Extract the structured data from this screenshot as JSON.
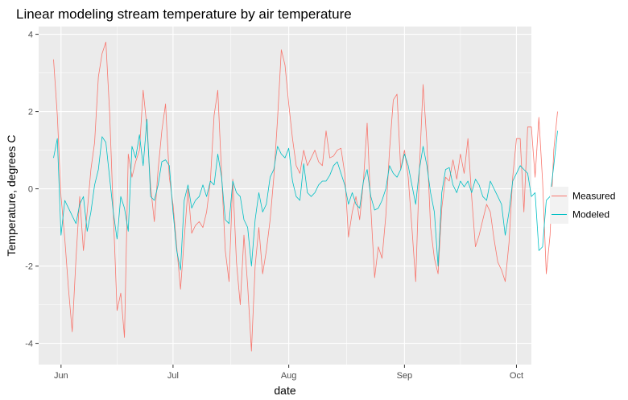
{
  "chart_data": {
    "type": "line",
    "title": "Linear modeling stream temperature by air temperature",
    "xlabel": "date",
    "ylabel": "Temperature, degrees C",
    "x_ticks": [
      {
        "label": "Jun",
        "date": "2016-06-01"
      },
      {
        "label": "Jul",
        "date": "2016-07-01"
      },
      {
        "label": "Aug",
        "date": "2016-08-01"
      },
      {
        "label": "Sep",
        "date": "2016-09-01"
      },
      {
        "label": "Oct",
        "date": "2016-10-01"
      }
    ],
    "xlim": [
      "2016-05-26",
      "2016-10-05"
    ],
    "y_ticks": [
      -4,
      -2,
      0,
      2,
      4
    ],
    "ylim": [
      -4.55,
      4.2
    ],
    "grid": true,
    "legend_position": "right",
    "series": [
      {
        "name": "Measured",
        "color": "#F8766D",
        "points": [
          [
            "2016-05-30",
            3.35
          ],
          [
            "2016-05-31",
            1.9
          ],
          [
            "2016-06-01",
            -0.2
          ],
          [
            "2016-06-02",
            -1.3
          ],
          [
            "2016-06-03",
            -2.6
          ],
          [
            "2016-06-04",
            -3.7
          ],
          [
            "2016-06-05",
            -1.8
          ],
          [
            "2016-06-06",
            -0.2
          ],
          [
            "2016-06-07",
            -1.6
          ],
          [
            "2016-06-08",
            -0.6
          ],
          [
            "2016-06-09",
            0.5
          ],
          [
            "2016-06-10",
            1.2
          ],
          [
            "2016-06-11",
            2.9
          ],
          [
            "2016-06-12",
            3.5
          ],
          [
            "2016-06-13",
            3.8
          ],
          [
            "2016-06-14",
            2.0
          ],
          [
            "2016-06-15",
            -0.6
          ],
          [
            "2016-06-16",
            -3.15
          ],
          [
            "2016-06-17",
            -2.7
          ],
          [
            "2016-06-18",
            -3.85
          ],
          [
            "2016-06-19",
            0.9
          ],
          [
            "2016-06-20",
            0.3
          ],
          [
            "2016-06-21",
            0.7
          ],
          [
            "2016-06-22",
            1.0
          ],
          [
            "2016-06-23",
            2.55
          ],
          [
            "2016-06-24",
            1.6
          ],
          [
            "2016-06-25",
            0.05
          ],
          [
            "2016-06-26",
            -0.85
          ],
          [
            "2016-06-27",
            0.5
          ],
          [
            "2016-06-28",
            1.5
          ],
          [
            "2016-06-29",
            2.2
          ],
          [
            "2016-06-30",
            0.3
          ],
          [
            "2016-07-01",
            -0.4
          ],
          [
            "2016-07-02",
            -1.5
          ],
          [
            "2016-07-03",
            -2.6
          ],
          [
            "2016-07-04",
            -1.3
          ],
          [
            "2016-07-05",
            0.0
          ],
          [
            "2016-07-06",
            -1.15
          ],
          [
            "2016-07-07",
            -0.95
          ],
          [
            "2016-07-08",
            -0.85
          ],
          [
            "2016-07-09",
            -1.0
          ],
          [
            "2016-07-10",
            -0.6
          ],
          [
            "2016-07-11",
            0.2
          ],
          [
            "2016-07-12",
            1.9
          ],
          [
            "2016-07-13",
            2.55
          ],
          [
            "2016-07-14",
            0.4
          ],
          [
            "2016-07-15",
            -1.6
          ],
          [
            "2016-07-16",
            -2.4
          ],
          [
            "2016-07-17",
            0.25
          ],
          [
            "2016-07-18",
            -1.9
          ],
          [
            "2016-07-19",
            -3.0
          ],
          [
            "2016-07-20",
            -1.2
          ],
          [
            "2016-07-21",
            -2.5
          ],
          [
            "2016-07-22",
            -4.2
          ],
          [
            "2016-07-23",
            -2.0
          ],
          [
            "2016-07-24",
            -1.0
          ],
          [
            "2016-07-25",
            -2.2
          ],
          [
            "2016-07-26",
            -1.6
          ],
          [
            "2016-07-27",
            -0.8
          ],
          [
            "2016-07-28",
            0.3
          ],
          [
            "2016-07-29",
            1.8
          ],
          [
            "2016-07-30",
            3.6
          ],
          [
            "2016-07-31",
            3.2
          ],
          [
            "2016-08-01",
            2.2
          ],
          [
            "2016-08-02",
            1.3
          ],
          [
            "2016-08-03",
            0.6
          ],
          [
            "2016-08-04",
            0.4
          ],
          [
            "2016-08-05",
            1.0
          ],
          [
            "2016-08-06",
            0.6
          ],
          [
            "2016-08-07",
            0.8
          ],
          [
            "2016-08-08",
            1.0
          ],
          [
            "2016-08-09",
            0.7
          ],
          [
            "2016-08-10",
            0.6
          ],
          [
            "2016-08-11",
            1.5
          ],
          [
            "2016-08-12",
            0.8
          ],
          [
            "2016-08-13",
            0.85
          ],
          [
            "2016-08-14",
            1.0
          ],
          [
            "2016-08-15",
            1.05
          ],
          [
            "2016-08-16",
            0.4
          ],
          [
            "2016-08-17",
            -1.25
          ],
          [
            "2016-08-18",
            -0.6
          ],
          [
            "2016-08-19",
            -0.2
          ],
          [
            "2016-08-20",
            -0.8
          ],
          [
            "2016-08-21",
            0.2
          ],
          [
            "2016-08-22",
            1.7
          ],
          [
            "2016-08-23",
            -0.5
          ],
          [
            "2016-08-24",
            -2.3
          ],
          [
            "2016-08-25",
            -1.5
          ],
          [
            "2016-08-26",
            -1.8
          ],
          [
            "2016-08-27",
            -0.7
          ],
          [
            "2016-08-28",
            1.0
          ],
          [
            "2016-08-29",
            2.3
          ],
          [
            "2016-08-30",
            2.45
          ],
          [
            "2016-08-31",
            0.5
          ],
          [
            "2016-09-01",
            1.0
          ],
          [
            "2016-09-02",
            0.3
          ],
          [
            "2016-09-03",
            -1.0
          ],
          [
            "2016-09-04",
            -2.4
          ],
          [
            "2016-09-05",
            0.5
          ],
          [
            "2016-09-06",
            2.7
          ],
          [
            "2016-09-07",
            1.2
          ],
          [
            "2016-09-08",
            -1.0
          ],
          [
            "2016-09-09",
            -1.8
          ],
          [
            "2016-09-10",
            -2.2
          ],
          [
            "2016-09-11",
            -0.5
          ],
          [
            "2016-09-12",
            0.3
          ],
          [
            "2016-09-13",
            0.2
          ],
          [
            "2016-09-14",
            0.75
          ],
          [
            "2016-09-15",
            0.25
          ],
          [
            "2016-09-16",
            0.9
          ],
          [
            "2016-09-17",
            0.4
          ],
          [
            "2016-09-18",
            1.3
          ],
          [
            "2016-09-19",
            -0.2
          ],
          [
            "2016-09-20",
            -1.5
          ],
          [
            "2016-09-21",
            -1.2
          ],
          [
            "2016-09-22",
            -0.8
          ],
          [
            "2016-09-23",
            -0.4
          ],
          [
            "2016-09-24",
            -0.6
          ],
          [
            "2016-09-25",
            -1.3
          ],
          [
            "2016-09-26",
            -1.9
          ],
          [
            "2016-09-27",
            -2.1
          ],
          [
            "2016-09-28",
            -2.4
          ],
          [
            "2016-09-29",
            -1.4
          ],
          [
            "2016-09-30",
            0.3
          ],
          [
            "2016-10-01",
            1.3
          ],
          [
            "2016-10-02",
            1.3
          ],
          [
            "2016-10-03",
            -0.6
          ],
          [
            "2016-10-04",
            1.6
          ],
          [
            "2016-10-05",
            1.6
          ],
          [
            "2016-10-06",
            0.3
          ],
          [
            "2016-10-07",
            1.85
          ],
          [
            "2016-10-08",
            0.2
          ],
          [
            "2016-10-09",
            -2.2
          ],
          [
            "2016-10-10",
            -1.2
          ],
          [
            "2016-10-11",
            1.0
          ],
          [
            "2016-10-12",
            2.0
          ]
        ]
      },
      {
        "name": "Modeled",
        "color": "#00BFC4",
        "points": [
          [
            "2016-05-30",
            0.8
          ],
          [
            "2016-05-31",
            1.3
          ],
          [
            "2016-06-01",
            -1.2
          ],
          [
            "2016-06-02",
            -0.3
          ],
          [
            "2016-06-03",
            -0.5
          ],
          [
            "2016-06-04",
            -0.7
          ],
          [
            "2016-06-05",
            -0.9
          ],
          [
            "2016-06-06",
            -0.4
          ],
          [
            "2016-06-07",
            -0.2
          ],
          [
            "2016-06-08",
            -1.1
          ],
          [
            "2016-06-09",
            -0.6
          ],
          [
            "2016-06-10",
            0.1
          ],
          [
            "2016-06-11",
            0.5
          ],
          [
            "2016-06-12",
            1.35
          ],
          [
            "2016-06-13",
            1.2
          ],
          [
            "2016-06-14",
            0.3
          ],
          [
            "2016-06-15",
            -0.6
          ],
          [
            "2016-06-16",
            -1.3
          ],
          [
            "2016-06-17",
            -0.2
          ],
          [
            "2016-06-18",
            -0.5
          ],
          [
            "2016-06-19",
            -1.1
          ],
          [
            "2016-06-20",
            1.1
          ],
          [
            "2016-06-21",
            0.8
          ],
          [
            "2016-06-22",
            1.4
          ],
          [
            "2016-06-23",
            0.6
          ],
          [
            "2016-06-24",
            1.8
          ],
          [
            "2016-06-25",
            -0.2
          ],
          [
            "2016-06-26",
            -0.3
          ],
          [
            "2016-06-27",
            0.1
          ],
          [
            "2016-06-28",
            0.7
          ],
          [
            "2016-06-29",
            0.75
          ],
          [
            "2016-06-30",
            0.6
          ],
          [
            "2016-07-01",
            -0.6
          ],
          [
            "2016-07-02",
            -1.6
          ],
          [
            "2016-07-03",
            -2.1
          ],
          [
            "2016-07-04",
            -0.3
          ],
          [
            "2016-07-05",
            0.1
          ],
          [
            "2016-07-06",
            -0.5
          ],
          [
            "2016-07-07",
            -0.3
          ],
          [
            "2016-07-08",
            -0.2
          ],
          [
            "2016-07-09",
            0.1
          ],
          [
            "2016-07-10",
            -0.2
          ],
          [
            "2016-07-11",
            0.2
          ],
          [
            "2016-07-12",
            0.1
          ],
          [
            "2016-07-13",
            0.9
          ],
          [
            "2016-07-14",
            0.3
          ],
          [
            "2016-07-15",
            -0.8
          ],
          [
            "2016-07-16",
            -0.9
          ],
          [
            "2016-07-17",
            0.2
          ],
          [
            "2016-07-18",
            -0.1
          ],
          [
            "2016-07-19",
            -0.2
          ],
          [
            "2016-07-20",
            -0.8
          ],
          [
            "2016-07-21",
            -1.0
          ],
          [
            "2016-07-22",
            -2.0
          ],
          [
            "2016-07-23",
            -0.8
          ],
          [
            "2016-07-24",
            -0.1
          ],
          [
            "2016-07-25",
            -0.6
          ],
          [
            "2016-07-26",
            -0.4
          ],
          [
            "2016-07-27",
            0.3
          ],
          [
            "2016-07-28",
            0.5
          ],
          [
            "2016-07-29",
            1.1
          ],
          [
            "2016-07-30",
            0.9
          ],
          [
            "2016-07-31",
            0.8
          ],
          [
            "2016-08-01",
            1.05
          ],
          [
            "2016-08-02",
            0.2
          ],
          [
            "2016-08-03",
            -0.2
          ],
          [
            "2016-08-04",
            -0.3
          ],
          [
            "2016-08-05",
            0.65
          ],
          [
            "2016-08-06",
            -0.1
          ],
          [
            "2016-08-07",
            -0.2
          ],
          [
            "2016-08-08",
            -0.1
          ],
          [
            "2016-08-09",
            0.1
          ],
          [
            "2016-08-10",
            0.2
          ],
          [
            "2016-08-11",
            0.2
          ],
          [
            "2016-08-12",
            0.35
          ],
          [
            "2016-08-13",
            0.6
          ],
          [
            "2016-08-14",
            0.7
          ],
          [
            "2016-08-15",
            0.4
          ],
          [
            "2016-08-16",
            0.1
          ],
          [
            "2016-08-17",
            -0.4
          ],
          [
            "2016-08-18",
            -0.1
          ],
          [
            "2016-08-19",
            -0.4
          ],
          [
            "2016-08-20",
            -0.5
          ],
          [
            "2016-08-21",
            0.2
          ],
          [
            "2016-08-22",
            0.5
          ],
          [
            "2016-08-23",
            -0.2
          ],
          [
            "2016-08-24",
            -0.55
          ],
          [
            "2016-08-25",
            -0.5
          ],
          [
            "2016-08-26",
            -0.3
          ],
          [
            "2016-08-27",
            0.0
          ],
          [
            "2016-08-28",
            0.6
          ],
          [
            "2016-08-29",
            0.4
          ],
          [
            "2016-08-30",
            0.3
          ],
          [
            "2016-08-31",
            0.5
          ],
          [
            "2016-09-01",
            0.9
          ],
          [
            "2016-09-02",
            0.6
          ],
          [
            "2016-09-03",
            0.1
          ],
          [
            "2016-09-04",
            -0.4
          ],
          [
            "2016-09-05",
            0.5
          ],
          [
            "2016-09-06",
            1.1
          ],
          [
            "2016-09-07",
            0.6
          ],
          [
            "2016-09-08",
            -0.1
          ],
          [
            "2016-09-09",
            -0.6
          ],
          [
            "2016-09-10",
            -2.0
          ],
          [
            "2016-09-11",
            -0.1
          ],
          [
            "2016-09-12",
            0.5
          ],
          [
            "2016-09-13",
            0.55
          ],
          [
            "2016-09-14",
            0.1
          ],
          [
            "2016-09-15",
            -0.1
          ],
          [
            "2016-09-16",
            0.2
          ],
          [
            "2016-09-17",
            0.05
          ],
          [
            "2016-09-18",
            0.2
          ],
          [
            "2016-09-19",
            -0.1
          ],
          [
            "2016-09-20",
            0.25
          ],
          [
            "2016-09-21",
            0.1
          ],
          [
            "2016-09-22",
            -0.2
          ],
          [
            "2016-09-23",
            -0.3
          ],
          [
            "2016-09-24",
            0.2
          ],
          [
            "2016-09-25",
            0.0
          ],
          [
            "2016-09-26",
            -0.2
          ],
          [
            "2016-09-27",
            -0.4
          ],
          [
            "2016-09-28",
            -1.2
          ],
          [
            "2016-09-29",
            -0.6
          ],
          [
            "2016-09-30",
            0.2
          ],
          [
            "2016-10-01",
            0.4
          ],
          [
            "2016-10-02",
            0.6
          ],
          [
            "2016-10-03",
            0.5
          ],
          [
            "2016-10-04",
            0.4
          ],
          [
            "2016-10-05",
            -0.2
          ],
          [
            "2016-10-06",
            -0.1
          ],
          [
            "2016-10-07",
            -1.6
          ],
          [
            "2016-10-08",
            -1.5
          ],
          [
            "2016-10-09",
            -0.3
          ],
          [
            "2016-10-10",
            -0.2
          ],
          [
            "2016-10-11",
            0.6
          ],
          [
            "2016-10-12",
            1.5
          ]
        ]
      }
    ]
  }
}
